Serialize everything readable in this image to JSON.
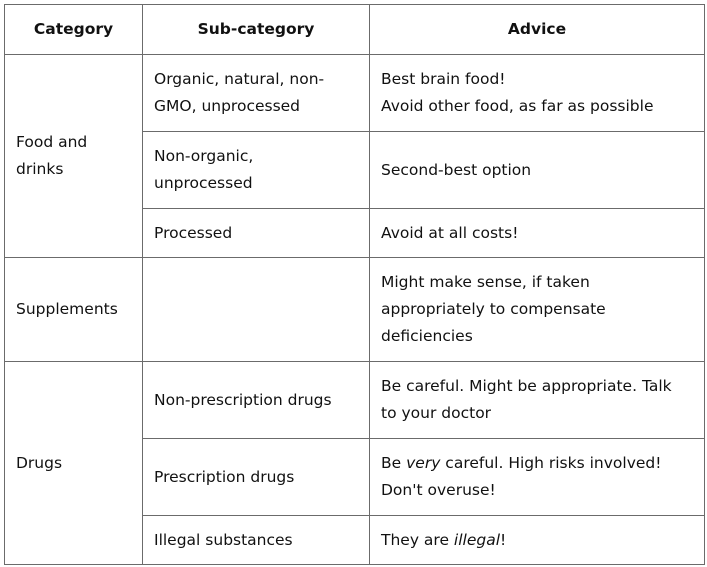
{
  "headers": {
    "category": "Category",
    "subcategory": "Sub-category",
    "advice": "Advice"
  },
  "food": {
    "category": [
      "Food and",
      "drinks"
    ],
    "rows": [
      {
        "sub": [
          "Organic, natural, non-",
          "GMO, unprocessed"
        ],
        "advice": [
          "Best brain food!",
          "Avoid other food, as far as possible"
        ]
      },
      {
        "sub": [
          "Non-organic,",
          "unprocessed"
        ],
        "advice": [
          "Second-best option"
        ]
      },
      {
        "sub": [
          "Processed"
        ],
        "advice": [
          "Avoid at all costs!"
        ]
      }
    ]
  },
  "supplements": {
    "category": "Supplements",
    "sub": "",
    "advice": [
      "Might make sense, if taken",
      "appropriately to compensate",
      "deficiencies"
    ]
  },
  "drugs": {
    "category": "Drugs",
    "rows": [
      {
        "sub": "Non-prescription drugs",
        "advice": [
          "Be careful. Might be appropriate. Talk",
          "to your doctor"
        ]
      },
      {
        "sub": "Prescription drugs",
        "advice_pre": "Be ",
        "advice_em": "very",
        "advice_post": " careful. High risks involved!",
        "advice_line2": "Don't overuse!"
      },
      {
        "sub": "Illegal substances",
        "advice_pre": "They are ",
        "advice_em": "illegal",
        "advice_post": "!"
      }
    ]
  }
}
